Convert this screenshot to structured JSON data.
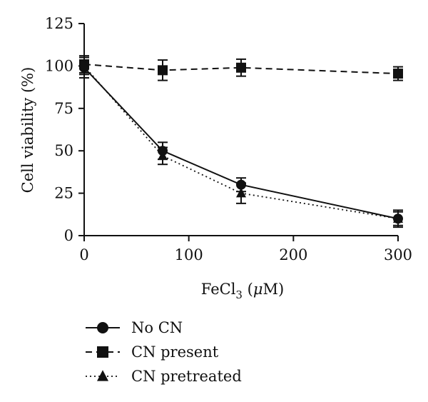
{
  "chart_data": {
    "type": "line",
    "xlabel": {
      "main": "FeCl",
      "sub": "3",
      "unit_open": " (",
      "unit_mu": "μ",
      "unit_rest": "M)"
    },
    "ylabel": "Cell viability (%)",
    "xlim": [
      0,
      300
    ],
    "ylim": [
      0,
      125
    ],
    "x_ticks": [
      0,
      100,
      200,
      300
    ],
    "x_tick_labels": [
      "0",
      "100",
      "200",
      "300"
    ],
    "y_ticks": [
      0,
      25,
      50,
      75,
      100,
      125
    ],
    "y_tick_labels": [
      "0",
      "25",
      "50",
      "75",
      "100",
      "125"
    ],
    "grid": false,
    "legend_position": "bottom-left",
    "series": [
      {
        "name": "No CN",
        "marker": "circle",
        "line": "solid",
        "x": [
          0,
          75,
          150,
          300
        ],
        "y": [
          99,
          50,
          30,
          10
        ],
        "err": [
          6,
          5,
          4,
          5
        ]
      },
      {
        "name": "CN present",
        "marker": "square",
        "line": "dashed",
        "x": [
          0,
          75,
          150,
          300
        ],
        "y": [
          101,
          97.5,
          99,
          95.5
        ],
        "err": [
          5,
          6,
          5,
          4
        ]
      },
      {
        "name": "CN pretreated",
        "marker": "triangle",
        "line": "dotted",
        "x": [
          0,
          75,
          150,
          300
        ],
        "y": [
          100,
          47,
          25,
          10
        ],
        "err": [
          5,
          5,
          6,
          4
        ]
      }
    ]
  }
}
